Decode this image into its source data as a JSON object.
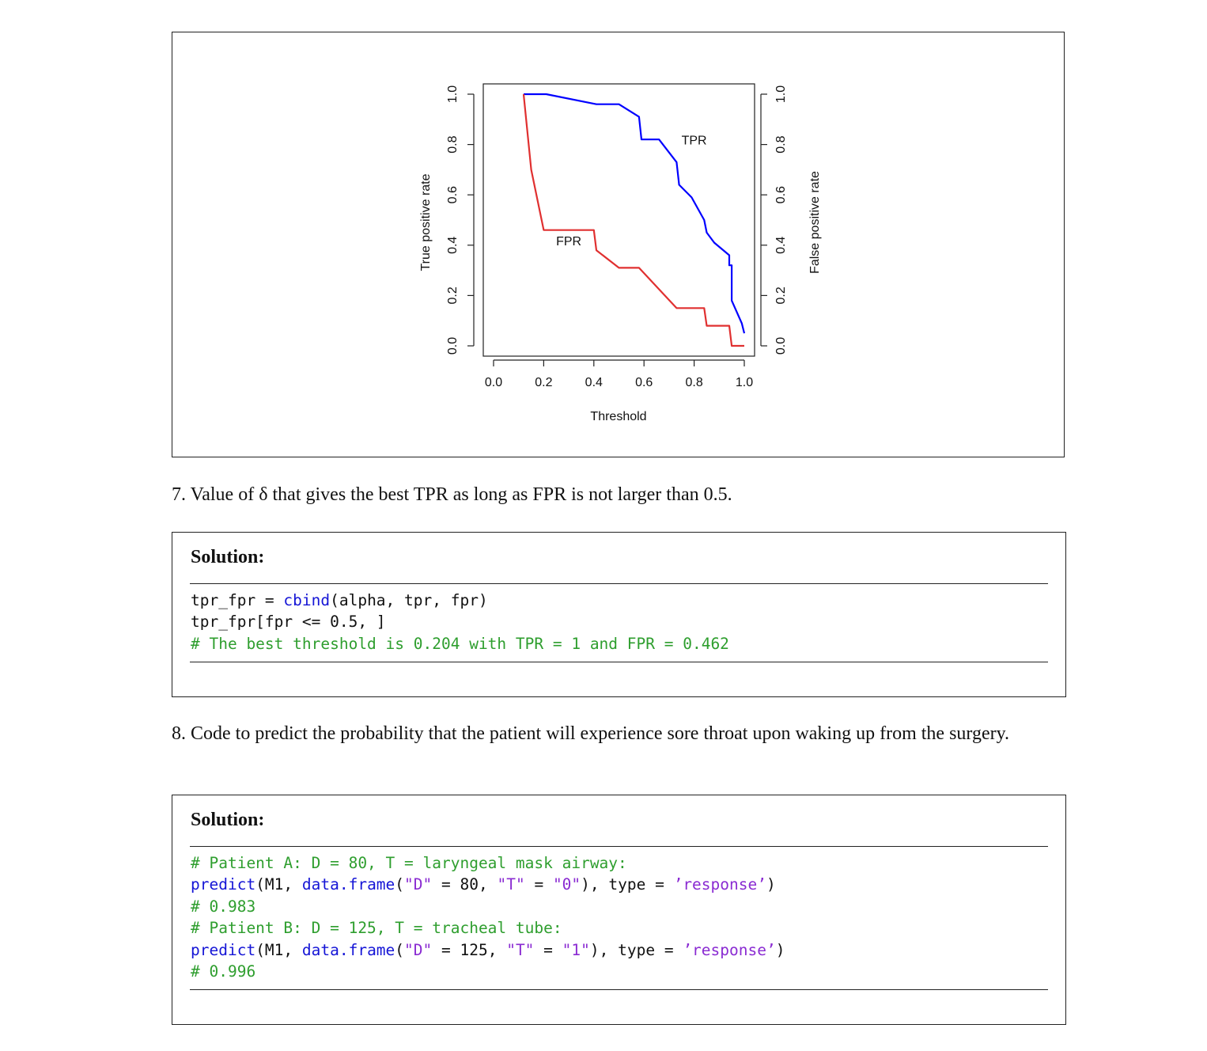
{
  "chart_data": {
    "type": "line",
    "xlabel": "Threshold",
    "ylabel_left": "True positive rate",
    "ylabel_right": "False positive rate",
    "xlim": [
      0,
      1
    ],
    "ylim": [
      0,
      1
    ],
    "x_ticks": [
      "0.0",
      "0.2",
      "0.4",
      "0.6",
      "0.8",
      "1.0"
    ],
    "y_ticks": [
      "0.0",
      "0.2",
      "0.4",
      "0.6",
      "0.8",
      "1.0"
    ],
    "series": [
      {
        "name": "TPR",
        "color": "#0000ff",
        "x": [
          0.12,
          0.21,
          0.41,
          0.5,
          0.58,
          0.59,
          0.66,
          0.73,
          0.74,
          0.79,
          0.84,
          0.85,
          0.88,
          0.94,
          0.94,
          0.95,
          0.95,
          0.99,
          1.0
        ],
        "y": [
          1.0,
          1.0,
          0.96,
          0.96,
          0.91,
          0.82,
          0.82,
          0.73,
          0.64,
          0.59,
          0.5,
          0.45,
          0.41,
          0.36,
          0.32,
          0.32,
          0.18,
          0.09,
          0.05
        ]
      },
      {
        "name": "FPR",
        "color": "#e03030",
        "x": [
          0.12,
          0.15,
          0.2,
          0.4,
          0.41,
          0.5,
          0.58,
          0.73,
          0.84,
          0.85,
          0.94,
          0.95,
          1.0
        ],
        "y": [
          1.0,
          0.7,
          0.46,
          0.46,
          0.38,
          0.31,
          0.31,
          0.15,
          0.15,
          0.08,
          0.08,
          0.0,
          0.0
        ]
      }
    ],
    "annotations": [
      {
        "text": "TPR",
        "x": 0.8,
        "y": 0.8
      },
      {
        "text": "FPR",
        "x": 0.3,
        "y": 0.4
      }
    ]
  },
  "q7": {
    "text": "7. Value of δ that gives the best TPR as long as FPR is not larger than 0.5."
  },
  "sol7": {
    "title": "Solution:",
    "lines": [
      [
        {
          "t": "tpr_fpr = ",
          "c": ""
        },
        {
          "t": "cbind",
          "c": "fn"
        },
        {
          "t": "(alpha, tpr, fpr)",
          "c": ""
        }
      ],
      [
        {
          "t": "tpr_fpr[fpr <= 0.5, ]",
          "c": ""
        }
      ],
      [
        {
          "t": "# The best threshold is 0.204 with TPR = 1 and FPR = 0.462",
          "c": "cm"
        }
      ]
    ]
  },
  "q8": {
    "text": "8. Code to predict the probability that the patient will experience sore throat upon waking up from the surgery."
  },
  "sol8": {
    "title": "Solution:",
    "lines": [
      [
        {
          "t": "# Patient A: D = 80, T = laryngeal mask airway:",
          "c": "cm"
        }
      ],
      [
        {
          "t": "predict",
          "c": "fn"
        },
        {
          "t": "(M1, ",
          "c": ""
        },
        {
          "t": "data.frame",
          "c": "fn"
        },
        {
          "t": "(",
          "c": ""
        },
        {
          "t": "\"D\"",
          "c": "st"
        },
        {
          "t": " = 80, ",
          "c": ""
        },
        {
          "t": "\"T\"",
          "c": "st"
        },
        {
          "t": " = ",
          "c": ""
        },
        {
          "t": "\"0\"",
          "c": "st"
        },
        {
          "t": "), type = ",
          "c": ""
        },
        {
          "t": "’response’",
          "c": "st"
        },
        {
          "t": ")",
          "c": ""
        }
      ],
      [
        {
          "t": "# 0.983",
          "c": "cm"
        }
      ],
      [
        {
          "t": "# Patient B: D = 125, T = tracheal tube:",
          "c": "cm"
        }
      ],
      [
        {
          "t": "predict",
          "c": "fn"
        },
        {
          "t": "(M1, ",
          "c": ""
        },
        {
          "t": "data.frame",
          "c": "fn"
        },
        {
          "t": "(",
          "c": ""
        },
        {
          "t": "\"D\"",
          "c": "st"
        },
        {
          "t": " = 125, ",
          "c": ""
        },
        {
          "t": "\"T\"",
          "c": "st"
        },
        {
          "t": " = ",
          "c": ""
        },
        {
          "t": "\"1\"",
          "c": "st"
        },
        {
          "t": "), type = ",
          "c": ""
        },
        {
          "t": "’response’",
          "c": "st"
        },
        {
          "t": ")",
          "c": ""
        }
      ],
      [
        {
          "t": "# 0.996",
          "c": "cm"
        }
      ]
    ]
  }
}
